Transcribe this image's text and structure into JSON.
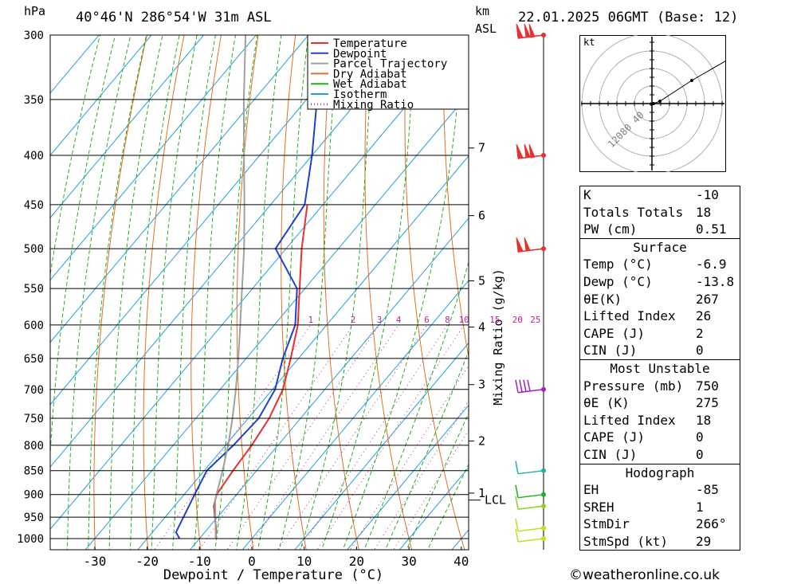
{
  "header": {
    "hpa_label": "hPa",
    "location": "40°46'N 286°54'W 31m ASL",
    "km_label": "km",
    "asl_label": "ASL",
    "datetime": "22.01.2025 06GMT (Base: 12)"
  },
  "chart_data": {
    "type": "skew-t",
    "xlabel": "Dewpoint / Temperature (°C)",
    "ylabel_right": "Mixing Ratio (g/kg)",
    "x_ticks": [
      -30,
      -20,
      -10,
      0,
      10,
      20,
      30,
      40
    ],
    "pressure_ticks": [
      300,
      350,
      400,
      450,
      500,
      550,
      600,
      650,
      700,
      750,
      800,
      850,
      900,
      950,
      1000
    ],
    "km_ticks": [
      {
        "label": "7",
        "pressure": 393
      },
      {
        "label": "6",
        "pressure": 462
      },
      {
        "label": "5",
        "pressure": 540
      },
      {
        "label": "4",
        "pressure": 603
      },
      {
        "label": "3",
        "pressure": 692
      },
      {
        "label": "2",
        "pressure": 792
      },
      {
        "label": "1",
        "pressure": 897
      }
    ],
    "lcl": {
      "label": "LCL",
      "pressure": 912
    },
    "mixing_ratio_labels": [
      "1",
      "2",
      "3",
      "4",
      "6",
      "8",
      "10",
      "15",
      "20",
      "25"
    ],
    "legend": [
      {
        "label": "Temperature",
        "color": "#e8302c",
        "style": "solid"
      },
      {
        "label": "Dewpoint",
        "color": "#2040d0",
        "style": "solid"
      },
      {
        "label": "Parcel Trajectory",
        "color": "#a0a0a0",
        "style": "solid"
      },
      {
        "label": "Dry Adiabat",
        "color": "#e07020",
        "style": "solid"
      },
      {
        "label": "Wet Adiabat",
        "color": "#20b020",
        "style": "solid"
      },
      {
        "label": "Isotherm",
        "color": "#20a0e0",
        "style": "solid"
      },
      {
        "label": "Mixing Ratio",
        "color": "#c020a0",
        "style": "dotted"
      }
    ],
    "series": [
      {
        "name": "Temperature",
        "points": [
          [
            1000,
            -6.9
          ],
          [
            975,
            -8.5
          ],
          [
            950,
            -10.5
          ],
          [
            925,
            -12.5
          ],
          [
            900,
            -13.8
          ],
          [
            850,
            -14.5
          ],
          [
            800,
            -15.0
          ],
          [
            750,
            -16.0
          ],
          [
            700,
            -18.0
          ],
          [
            650,
            -21.5
          ],
          [
            600,
            -25.5
          ],
          [
            550,
            -31.0
          ],
          [
            500,
            -37.0
          ],
          [
            450,
            -43.0
          ]
        ]
      },
      {
        "name": "Dewpoint",
        "points": [
          [
            1000,
            -13.8
          ],
          [
            985,
            -15.5
          ],
          [
            950,
            -16.5
          ],
          [
            900,
            -18.0
          ],
          [
            850,
            -19.5
          ],
          [
            800,
            -18.5
          ],
          [
            750,
            -18.0
          ],
          [
            700,
            -19.5
          ],
          [
            650,
            -23.0
          ],
          [
            600,
            -26.0
          ],
          [
            550,
            -31.5
          ],
          [
            500,
            -42.0
          ],
          [
            450,
            -43.5
          ],
          [
            400,
            -50.0
          ],
          [
            350,
            -58.0
          ],
          [
            300,
            -67.0
          ]
        ]
      },
      {
        "name": "Parcel Trajectory",
        "points": [
          [
            1000,
            -6.9
          ],
          [
            912,
            -13.2
          ],
          [
            850,
            -16.5
          ],
          [
            800,
            -19.5
          ],
          [
            750,
            -23.0
          ],
          [
            700,
            -27.0
          ],
          [
            650,
            -31.5
          ],
          [
            600,
            -36.5
          ],
          [
            550,
            -42.0
          ],
          [
            500,
            -48.0
          ],
          [
            450,
            -55.0
          ],
          [
            400,
            -63.0
          ],
          [
            350,
            -72.0
          ],
          [
            300,
            -82.0
          ]
        ]
      }
    ],
    "wind_barbs": [
      {
        "pressure": 300,
        "color": "#e8302c",
        "kind": "pennant+2"
      },
      {
        "pressure": 400,
        "color": "#e8302c",
        "kind": "pennant+2"
      },
      {
        "pressure": 500,
        "color": "#e8302c",
        "kind": "pennant+1"
      },
      {
        "pressure": 700,
        "color": "#a020c0",
        "kind": "4"
      },
      {
        "pressure": 850,
        "color": "#20b0a0",
        "kind": "1"
      },
      {
        "pressure": 900,
        "color": "#20b020",
        "kind": "1"
      },
      {
        "pressure": 925,
        "color": "#90d020",
        "kind": "1"
      },
      {
        "pressure": 975,
        "color": "#c0e020",
        "kind": "1"
      },
      {
        "pressure": 1000,
        "color": "#c0e020",
        "kind": "1"
      }
    ]
  },
  "hodograph": {
    "unit_label": "kt",
    "ring_labels": [
      "40",
      "80",
      "120"
    ],
    "points": [
      [
        -1,
        -0.5
      ],
      [
        2,
        0
      ],
      [
        10,
        3
      ],
      [
        50,
        29
      ],
      [
        95,
        55
      ]
    ]
  },
  "indices": {
    "top": [
      {
        "label": "K",
        "value": "-10"
      },
      {
        "label": "Totals Totals",
        "value": "18"
      },
      {
        "label": "PW (cm)",
        "value": "0.51"
      }
    ],
    "surface": {
      "title": "Surface",
      "rows": [
        {
          "label": "Temp (°C)",
          "value": "-6.9"
        },
        {
          "label": "Dewp (°C)",
          "value": "-13.8"
        },
        {
          "label": "θE(K)",
          "value": "267"
        },
        {
          "label": "Lifted Index",
          "value": "26"
        },
        {
          "label": "CAPE (J)",
          "value": "2"
        },
        {
          "label": "CIN (J)",
          "value": "0"
        }
      ]
    },
    "most_unstable": {
      "title": "Most Unstable",
      "rows": [
        {
          "label": "Pressure (mb)",
          "value": "750"
        },
        {
          "label": "θE (K)",
          "value": "275"
        },
        {
          "label": "Lifted Index",
          "value": "18"
        },
        {
          "label": "CAPE (J)",
          "value": "0"
        },
        {
          "label": "CIN (J)",
          "value": "0"
        }
      ]
    },
    "hodograph": {
      "title": "Hodograph",
      "rows": [
        {
          "label": "EH",
          "value": "-85"
        },
        {
          "label": "SREH",
          "value": "1"
        },
        {
          "label": "StmDir",
          "value": "266°"
        },
        {
          "label": "StmSpd (kt)",
          "value": "29"
        }
      ]
    }
  },
  "footer": {
    "copyright": "©weatheronline.co.uk"
  }
}
